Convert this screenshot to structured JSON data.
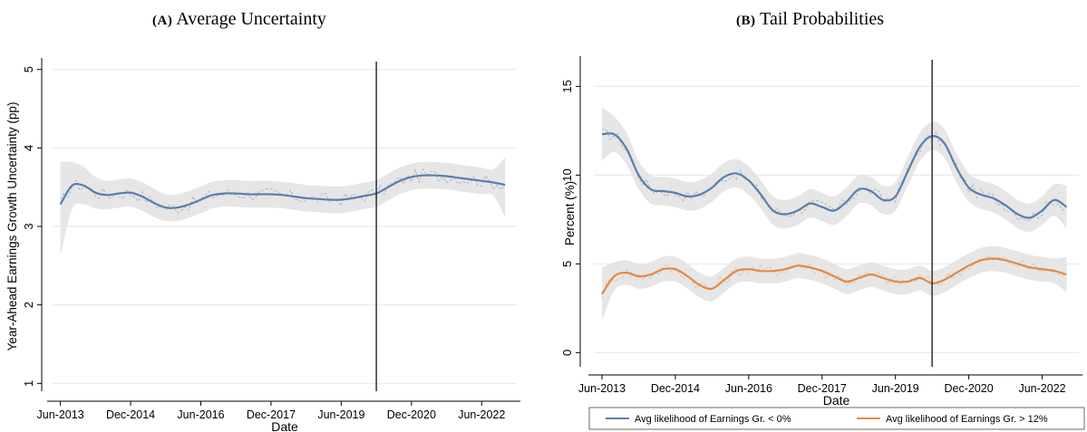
{
  "chart_data": [
    {
      "panel_label": "(A)",
      "title": "Average Uncertainty",
      "type": "line",
      "xlabel": "Date",
      "ylabel": "Year-Ahead Earnings Growth Uncertainty (pp)",
      "xlim": [
        "2013-04",
        "2023-03"
      ],
      "ylim": [
        0.9,
        5.1
      ],
      "xticks": [
        "Jun-2013",
        "Dec-2014",
        "Jun-2016",
        "Dec-2017",
        "Jun-2019",
        "Dec-2020",
        "Jun-2022"
      ],
      "yticks": [
        1,
        2,
        3,
        4,
        5
      ],
      "grid": true,
      "vertical_line": "2020-03",
      "series": [
        {
          "style": "smoothed line with confidence band",
          "color": "#5b7fa8",
          "band_color": "#e3e3e3",
          "x": [
            "2013-06",
            "2013-09",
            "2013-12",
            "2014-03",
            "2014-06",
            "2014-09",
            "2014-12",
            "2015-03",
            "2015-06",
            "2015-09",
            "2015-12",
            "2016-03",
            "2016-06",
            "2016-09",
            "2016-12",
            "2017-03",
            "2017-06",
            "2017-09",
            "2017-12",
            "2018-03",
            "2018-06",
            "2018-09",
            "2018-12",
            "2019-03",
            "2019-06",
            "2019-09",
            "2019-12",
            "2020-03",
            "2020-06",
            "2020-09",
            "2020-12",
            "2021-03",
            "2021-06",
            "2021-09",
            "2021-12",
            "2022-03",
            "2022-06",
            "2022-09",
            "2022-12"
          ],
          "values": [
            3.28,
            3.52,
            3.52,
            3.43,
            3.4,
            3.42,
            3.43,
            3.38,
            3.3,
            3.24,
            3.24,
            3.28,
            3.34,
            3.4,
            3.42,
            3.42,
            3.41,
            3.41,
            3.41,
            3.4,
            3.38,
            3.36,
            3.35,
            3.34,
            3.34,
            3.36,
            3.39,
            3.42,
            3.5,
            3.58,
            3.63,
            3.65,
            3.65,
            3.64,
            3.62,
            3.6,
            3.58,
            3.56,
            3.53
          ],
          "lower": [
            2.62,
            3.22,
            3.28,
            3.23,
            3.22,
            3.24,
            3.25,
            3.2,
            3.12,
            3.07,
            3.07,
            3.11,
            3.17,
            3.23,
            3.25,
            3.25,
            3.24,
            3.24,
            3.24,
            3.23,
            3.21,
            3.19,
            3.18,
            3.17,
            3.17,
            3.19,
            3.22,
            3.25,
            3.33,
            3.41,
            3.46,
            3.48,
            3.48,
            3.47,
            3.45,
            3.43,
            3.41,
            3.39,
            3.12
          ],
          "upper": [
            3.82,
            3.82,
            3.76,
            3.63,
            3.58,
            3.6,
            3.61,
            3.56,
            3.48,
            3.41,
            3.41,
            3.45,
            3.51,
            3.57,
            3.59,
            3.59,
            3.58,
            3.58,
            3.58,
            3.57,
            3.55,
            3.53,
            3.52,
            3.51,
            3.51,
            3.53,
            3.56,
            3.59,
            3.67,
            3.75,
            3.8,
            3.82,
            3.82,
            3.81,
            3.79,
            3.77,
            3.75,
            3.73,
            3.88
          ]
        }
      ]
    },
    {
      "panel_label": "(B)",
      "title": "Tail Probabilities",
      "type": "line",
      "xlabel": "Date",
      "ylabel": "Percent (%)",
      "xlim": [
        "2013-04",
        "2023-03"
      ],
      "ylim": [
        -0.8,
        16.5
      ],
      "xticks": [
        "Jun-2013",
        "Dec-2014",
        "Jun-2016",
        "Dec-2017",
        "Jun-2019",
        "Dec-2020",
        "Jun-2022"
      ],
      "yticks": [
        0,
        5,
        10,
        15
      ],
      "grid": true,
      "vertical_line": "2020-03",
      "legend_position": "bottom",
      "series": [
        {
          "name": "Avg likelihood of Earnings Gr. < 0%",
          "color": "#5b7fa8",
          "band_color": "#e3e3e3",
          "x": [
            "2013-06",
            "2013-09",
            "2013-12",
            "2014-03",
            "2014-06",
            "2014-09",
            "2014-12",
            "2015-03",
            "2015-06",
            "2015-09",
            "2015-12",
            "2016-03",
            "2016-06",
            "2016-09",
            "2016-12",
            "2017-03",
            "2017-06",
            "2017-09",
            "2017-12",
            "2018-03",
            "2018-06",
            "2018-09",
            "2018-12",
            "2019-03",
            "2019-06",
            "2019-09",
            "2019-12",
            "2020-03",
            "2020-06",
            "2020-09",
            "2020-12",
            "2021-03",
            "2021-06",
            "2021-09",
            "2021-12",
            "2022-03",
            "2022-06",
            "2022-09",
            "2022-12"
          ],
          "values": [
            12.3,
            12.3,
            11.5,
            10.0,
            9.2,
            9.1,
            9.0,
            8.8,
            8.9,
            9.3,
            9.9,
            10.1,
            9.7,
            8.9,
            8.0,
            7.8,
            8.0,
            8.4,
            8.2,
            8.0,
            8.5,
            9.2,
            9.1,
            8.6,
            8.8,
            10.2,
            11.6,
            12.2,
            11.8,
            10.4,
            9.3,
            8.9,
            8.7,
            8.3,
            7.8,
            7.6,
            8.0,
            8.6,
            8.2
          ],
          "lower": [
            10.8,
            11.3,
            10.6,
            9.2,
            8.4,
            8.3,
            8.2,
            8.0,
            8.1,
            8.5,
            9.1,
            9.3,
            8.9,
            8.1,
            7.2,
            7.0,
            7.2,
            7.6,
            7.4,
            7.2,
            7.7,
            8.4,
            8.3,
            7.8,
            8.0,
            9.4,
            10.8,
            11.4,
            11.0,
            9.6,
            8.5,
            8.1,
            7.9,
            7.5,
            7.0,
            6.8,
            7.2,
            7.7,
            7.0
          ],
          "upper": [
            13.8,
            13.3,
            12.4,
            10.8,
            10.0,
            9.9,
            9.8,
            9.6,
            9.7,
            10.1,
            10.7,
            10.9,
            10.5,
            9.7,
            8.8,
            8.6,
            8.8,
            9.2,
            9.0,
            8.8,
            9.3,
            10.0,
            9.9,
            9.4,
            9.6,
            11.0,
            12.4,
            13.0,
            12.6,
            11.2,
            10.1,
            9.7,
            9.5,
            9.1,
            8.6,
            8.4,
            8.8,
            9.5,
            9.4
          ]
        },
        {
          "name": "Avg likelihood of Earnings Gr. > 12%",
          "color": "#e08a46",
          "band_color": "#e3e3e3",
          "x": [
            "2013-06",
            "2013-09",
            "2013-12",
            "2014-03",
            "2014-06",
            "2014-09",
            "2014-12",
            "2015-03",
            "2015-06",
            "2015-09",
            "2015-12",
            "2016-03",
            "2016-06",
            "2016-09",
            "2016-12",
            "2017-03",
            "2017-06",
            "2017-09",
            "2017-12",
            "2018-03",
            "2018-06",
            "2018-09",
            "2018-12",
            "2019-03",
            "2019-06",
            "2019-09",
            "2019-12",
            "2020-03",
            "2020-06",
            "2020-09",
            "2020-12",
            "2021-03",
            "2021-06",
            "2021-09",
            "2021-12",
            "2022-03",
            "2022-06",
            "2022-09",
            "2022-12"
          ],
          "values": [
            3.3,
            4.3,
            4.5,
            4.3,
            4.4,
            4.7,
            4.7,
            4.3,
            3.8,
            3.6,
            4.1,
            4.6,
            4.7,
            4.6,
            4.6,
            4.7,
            4.9,
            4.8,
            4.6,
            4.3,
            4.0,
            4.2,
            4.4,
            4.2,
            4.0,
            4.0,
            4.2,
            3.9,
            4.1,
            4.5,
            4.9,
            5.2,
            5.3,
            5.2,
            5.0,
            4.8,
            4.7,
            4.6,
            4.4
          ],
          "lower": [
            1.8,
            3.5,
            3.8,
            3.6,
            3.7,
            4.0,
            4.0,
            3.6,
            3.1,
            2.9,
            3.4,
            3.9,
            4.0,
            3.9,
            3.9,
            4.0,
            4.2,
            4.1,
            3.9,
            3.6,
            3.3,
            3.5,
            3.7,
            3.5,
            3.3,
            3.3,
            3.5,
            3.2,
            3.4,
            3.8,
            4.2,
            4.5,
            4.6,
            4.5,
            4.3,
            4.1,
            4.0,
            3.9,
            3.4
          ],
          "upper": [
            4.8,
            5.1,
            5.2,
            5.0,
            5.1,
            5.4,
            5.4,
            5.0,
            4.5,
            4.3,
            4.8,
            5.3,
            5.4,
            5.3,
            5.3,
            5.4,
            5.6,
            5.5,
            5.3,
            5.0,
            4.7,
            4.9,
            5.1,
            4.9,
            4.7,
            4.7,
            4.9,
            4.6,
            4.8,
            5.2,
            5.6,
            5.9,
            6.0,
            5.9,
            5.7,
            5.5,
            5.4,
            5.3,
            5.4
          ]
        }
      ]
    }
  ]
}
